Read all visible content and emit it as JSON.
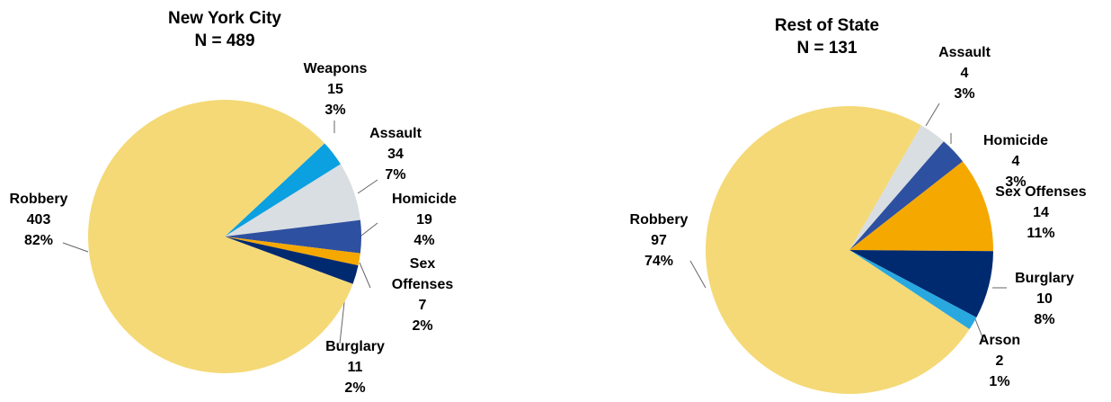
{
  "chart_data": [
    {
      "type": "pie",
      "title": "New York City",
      "subtitle": "N = 489",
      "categories": [
        "Weapons",
        "Assault",
        "Homicide",
        "Sex Offenses",
        "Burglary",
        "Robbery"
      ],
      "values": [
        15,
        34,
        19,
        7,
        11,
        403
      ],
      "percent_labels": [
        "3%",
        "7%",
        "4%",
        "2%",
        "2%",
        "82%"
      ],
      "colors": [
        "#0BA0E0",
        "#D9DEE2",
        "#2E50A0",
        "#F5A800",
        "#002A70",
        "#F5D976"
      ]
    },
    {
      "type": "pie",
      "title": "Rest of State",
      "subtitle": "N = 131",
      "categories": [
        "Assault",
        "Homicide",
        "Sex Offenses",
        "Burglary",
        "Arson",
        "Robbery"
      ],
      "values": [
        4,
        4,
        14,
        10,
        2,
        97
      ],
      "percent_labels": [
        "3%",
        "3%",
        "11%",
        "8%",
        "1%",
        "74%"
      ],
      "colors": [
        "#D9DEE2",
        "#2E50A0",
        "#F5A800",
        "#002A70",
        "#29A8E0",
        "#F5D976"
      ]
    }
  ]
}
